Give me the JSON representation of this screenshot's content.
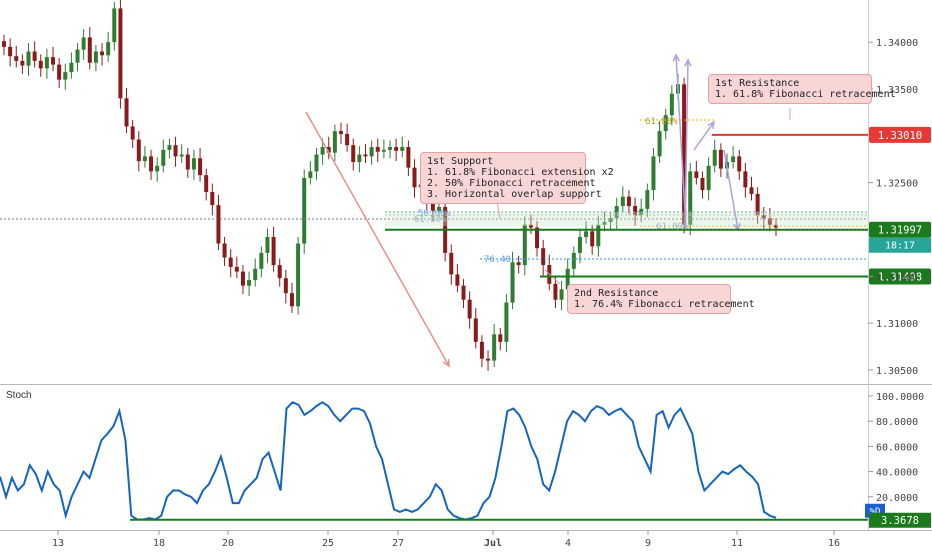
{
  "chart_data": [
    {
      "type": "candlestick",
      "title": "",
      "ylim": [
        1.3035,
        1.3445
      ],
      "y_ticks": [
        "1.34000",
        "1.33500",
        "1.32500",
        "1.31500",
        "1.31000",
        "1.30500"
      ],
      "x_ticks": [
        "13",
        "18",
        "20",
        "25",
        "27",
        "Jul",
        "4",
        "9",
        "11",
        "16"
      ],
      "price_levels": [
        {
          "label": "1.33010",
          "value": 1.3301,
          "color": "#e53935",
          "style": "solid",
          "name": "1st Resistance"
        },
        {
          "label": "1.31997",
          "value": 1.31997,
          "color": "#1b7a1b",
          "style": "solid",
          "name": "1st Support"
        },
        {
          "label": "1.31498",
          "value": 1.31498,
          "color": "#1b7a1b",
          "style": "solid",
          "name": "2nd Resistance"
        }
      ],
      "last_price": {
        "label": "1.31997",
        "countdown": "18:17",
        "color": "#26a69a"
      },
      "fib_labels": [
        "61.80%",
        "50.00%",
        "61.80%",
        "61.80%",
        "76.40"
      ],
      "annotations": [
        {
          "lines": [
            "1st Resistance",
            "1. 61.8% Fibonacci retracement"
          ]
        },
        {
          "lines": [
            "1st Support",
            "1. 61.8% Fibonacci extension x2",
            "2. 50% Fibonacci retracement",
            "3. Horizontal overlap support"
          ]
        },
        {
          "lines": [
            "2nd Resistance",
            "1. 76.4% Fibonacci retracement"
          ]
        }
      ],
      "close_series": [
        1.3395,
        1.3385,
        1.338,
        1.3375,
        1.339,
        1.338,
        1.3372,
        1.3384,
        1.3376,
        1.336,
        1.3368,
        1.3378,
        1.3392,
        1.3405,
        1.3378,
        1.339,
        1.3386,
        1.34,
        1.3436,
        1.334,
        1.331,
        1.3296,
        1.3273,
        1.3278,
        1.3262,
        1.3268,
        1.3285,
        1.329,
        1.3278,
        1.328,
        1.3264,
        1.3276,
        1.3258,
        1.324,
        1.3226,
        1.3185,
        1.317,
        1.316,
        1.3155,
        1.314,
        1.3146,
        1.3158,
        1.3175,
        1.3192,
        1.3162,
        1.3148,
        1.3132,
        1.3118,
        1.3185,
        1.3255,
        1.3262,
        1.328,
        1.3288,
        1.3282,
        1.3305,
        1.3302,
        1.329,
        1.3272,
        1.328,
        1.3278,
        1.3288,
        1.3283,
        1.3285,
        1.3288,
        1.3284,
        1.3288,
        1.3266,
        1.3245,
        1.3248,
        1.323,
        1.322,
        1.3224,
        1.3175,
        1.3152,
        1.314,
        1.3125,
        1.3105,
        1.308,
        1.3062,
        1.306,
        1.3088,
        1.308,
        1.3122,
        1.3165,
        1.3162,
        1.3205,
        1.3202,
        1.318,
        1.3162,
        1.3142,
        1.3125,
        1.3136,
        1.3158,
        1.3175,
        1.3192,
        1.3198,
        1.3182,
        1.3205,
        1.3208,
        1.3212,
        1.3225,
        1.3235,
        1.3225,
        1.3215,
        1.3222,
        1.3242,
        1.3278,
        1.3305,
        1.3322,
        1.3345,
        1.3355,
        1.3205,
        1.3262,
        1.3255,
        1.3242,
        1.3268,
        1.3285,
        1.3265,
        1.3272,
        1.3278,
        1.3262,
        1.3245,
        1.3238,
        1.3215,
        1.3212,
        1.3205,
        1.3202
      ]
    },
    {
      "type": "line",
      "title": "Stoch",
      "ylim": [
        0,
        100
      ],
      "y_ticks": [
        "100.0000",
        "80.0000",
        "60.0000",
        "40.0000",
        "20.0000"
      ],
      "x_ticks": [
        "13",
        "18",
        "20",
        "25",
        "27",
        "Jul",
        "4",
        "9",
        "11",
        "16"
      ],
      "series": [
        {
          "name": "%D",
          "last_label": "3.3678",
          "values": [
            36,
            20,
            35,
            25,
            30,
            45,
            38,
            25,
            40,
            30,
            25,
            5,
            20,
            30,
            40,
            35,
            50,
            65,
            70,
            76,
            88,
            65,
            5,
            2,
            2,
            3,
            2,
            5,
            20,
            25,
            25,
            22,
            20,
            15,
            25,
            30,
            40,
            52,
            35,
            15,
            15,
            25,
            30,
            35,
            50,
            55,
            40,
            25,
            90,
            95,
            93,
            85,
            88,
            92,
            95,
            92,
            85,
            80,
            85,
            90,
            90,
            88,
            78,
            60,
            50,
            30,
            10,
            8,
            10,
            8,
            10,
            15,
            20,
            30,
            25,
            10,
            5,
            3,
            2,
            3,
            5,
            15,
            20,
            35,
            60,
            88,
            90,
            85,
            75,
            60,
            50,
            30,
            25,
            40,
            60,
            80,
            88,
            85,
            80,
            88,
            92,
            90,
            85,
            88,
            90,
            85,
            80,
            60,
            50,
            40,
            85,
            88,
            75,
            85,
            90,
            80,
            70,
            40,
            25,
            30,
            35,
            40,
            38,
            42,
            45,
            40,
            36,
            30,
            8,
            5,
            3.3678
          ]
        }
      ],
      "levels": [
        {
          "label": "3.3678",
          "value": 3.3678,
          "color": "#1b7a1b"
        }
      ]
    }
  ]
}
